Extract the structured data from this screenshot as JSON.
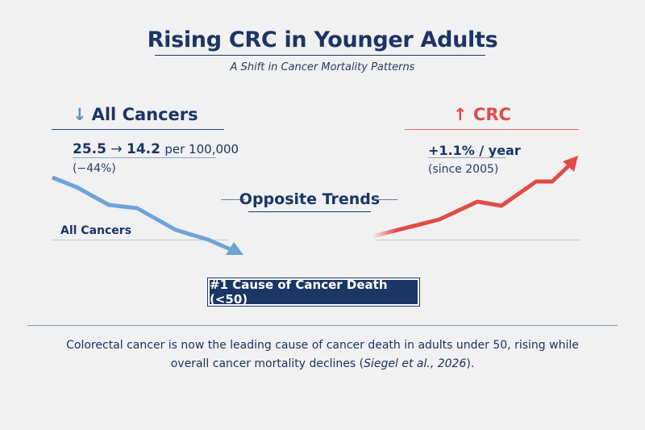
{
  "header": {
    "title": "Rising CRC in Younger Adults",
    "subtitle": "A Shift in Cancer Mortality Patterns"
  },
  "left": {
    "arrow_icon": "arrow-down-icon",
    "heading": "All Cancers",
    "stat_from": "25.5",
    "stat_arrow": "→",
    "stat_to": "14.2",
    "stat_unit": "per 100,000",
    "change": "(−44%)",
    "line_label": "All Cancers",
    "color": "#6fa3d6",
    "trend": "down"
  },
  "right": {
    "arrow_icon": "arrow-up-icon",
    "heading": "CRC",
    "rate": "+1.1% / year",
    "since": "(since 2005)",
    "color": "#e04b46",
    "trend": "up"
  },
  "center": {
    "label": "Opposite Trends"
  },
  "badge": {
    "label": "#1 Cause of Cancer Death (<50)"
  },
  "caption": {
    "text": "Colorectal cancer is now the leading cause of cancer death in adults under 50, rising while overall cancer mortality declines (",
    "citation": "Siegel et al., 2026",
    "end": ")."
  },
  "colors": {
    "navy": "#1b3565",
    "blue": "#6fa3d6",
    "red": "#e04b46",
    "background": "#f1f1f2"
  }
}
